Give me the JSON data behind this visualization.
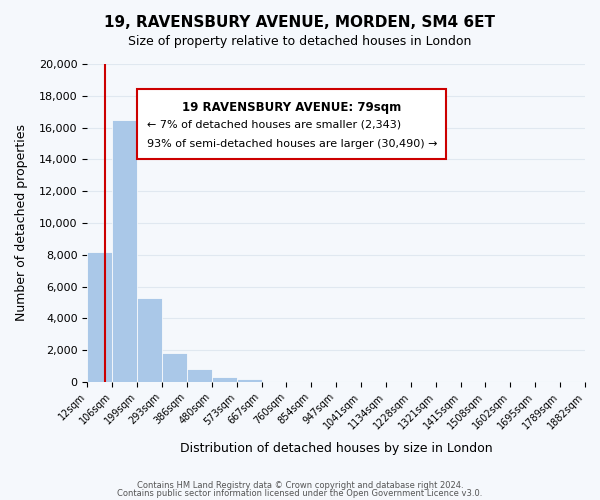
{
  "title": "19, RAVENSBURY AVENUE, MORDEN, SM4 6ET",
  "subtitle": "Size of property relative to detached houses in London",
  "xlabel": "Distribution of detached houses by size in London",
  "ylabel": "Number of detached properties",
  "bar_values": [
    8200,
    16500,
    5300,
    1800,
    800,
    300,
    200,
    0,
    0,
    0,
    0,
    0,
    0,
    0,
    0,
    0,
    0,
    0,
    0,
    0
  ],
  "bar_color": "#aac8e8",
  "bar_edge_color": "#aac8e8",
  "x_labels": [
    "12sqm",
    "106sqm",
    "199sqm",
    "293sqm",
    "386sqm",
    "480sqm",
    "573sqm",
    "667sqm",
    "760sqm",
    "854sqm",
    "947sqm",
    "1041sqm",
    "1134sqm",
    "1228sqm",
    "1321sqm",
    "1415sqm",
    "1508sqm",
    "1602sqm",
    "1695sqm",
    "1789sqm"
  ],
  "ylim": [
    0,
    20000
  ],
  "yticks": [
    0,
    2000,
    4000,
    6000,
    8000,
    10000,
    12000,
    14000,
    16000,
    18000,
    20000
  ],
  "property_sqm": 79,
  "red_line_x": 0.5,
  "annotation_title": "19 RAVENSBURY AVENUE: 79sqm",
  "annotation_line1": "← 7% of detached houses are smaller (2,343)",
  "annotation_line2": "93% of semi-detached houses are larger (30,490) →",
  "red_color": "#cc0000",
  "grid_color": "#e0e8f0",
  "background_color": "#f5f8fc",
  "footer1": "Contains HM Land Registry data © Crown copyright and database right 2024.",
  "footer2": "Contains public sector information licensed under the Open Government Licence v3.0."
}
